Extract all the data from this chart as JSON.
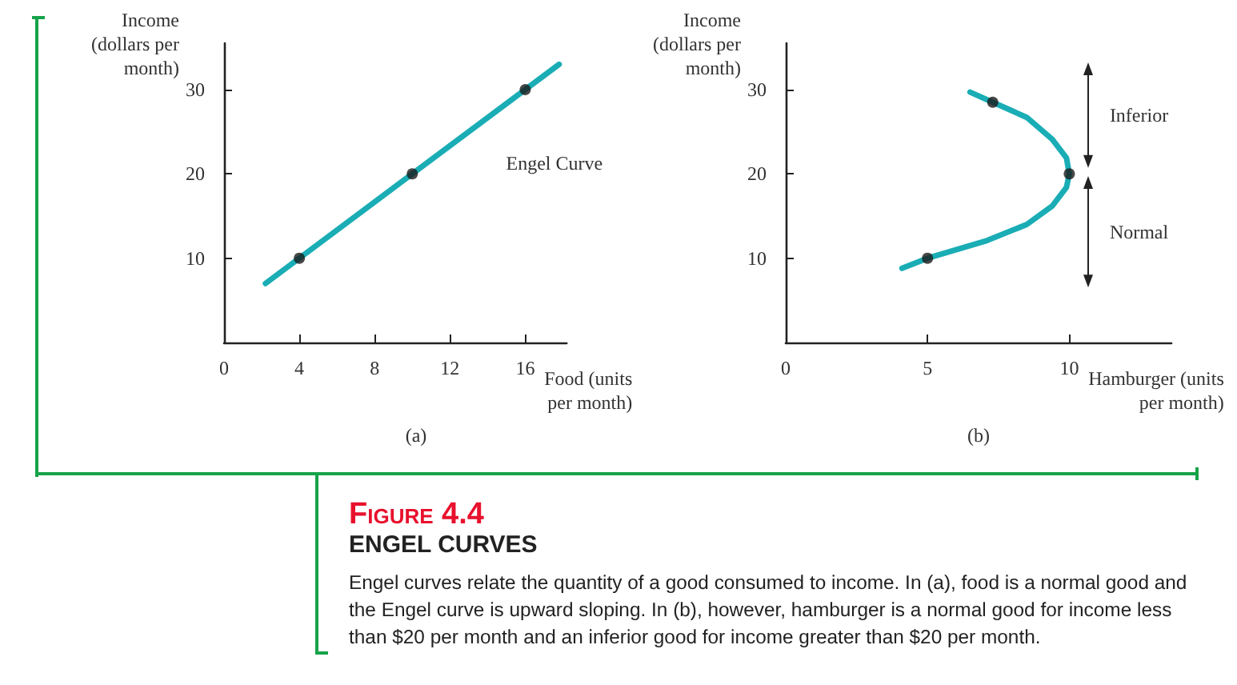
{
  "chart_data": [
    {
      "type": "line",
      "xlabel": "Food (units per month)",
      "ylabel": "Income (dollars per month)",
      "xlim": [
        0,
        18.2
      ],
      "ylim": [
        0,
        35.5
      ],
      "xticks": [
        0,
        4,
        8,
        12,
        16
      ],
      "yticks": [
        10,
        20,
        30
      ],
      "grid": false,
      "series": [
        {
          "type": "line",
          "x": [
            2.2,
            17.8
          ],
          "values": [
            7,
            33
          ],
          "color": "#1aadb5",
          "line_style": "solid"
        },
        {
          "type": "scatter",
          "x": [
            4,
            10,
            16
          ],
          "values": [
            10,
            20,
            30
          ],
          "color": "#1a1a1a",
          "marker": "circle"
        }
      ],
      "annotations": [
        "Engel Curve",
        "(a)"
      ]
    },
    {
      "type": "line",
      "xlabel": "Hamburger (units per month)",
      "ylabel": "Income (dollars per month)",
      "xlim": [
        0,
        13.6
      ],
      "ylim": [
        0,
        35.5
      ],
      "xticks": [
        0,
        5,
        10
      ],
      "yticks": [
        10,
        20,
        30
      ],
      "grid": false,
      "series": [
        {
          "type": "line",
          "x": [
            4.1,
            5,
            7.1,
            8.5,
            9.4,
            9.9,
            10,
            9.9,
            9.4,
            8.5,
            7.3,
            6.5
          ],
          "values": [
            8.8,
            10,
            12.1,
            14,
            16.2,
            18.4,
            20,
            21.9,
            24.1,
            26.7,
            28.5,
            29.7
          ],
          "color": "#1aadb5",
          "line_style": "solid"
        },
        {
          "type": "scatter",
          "x": [
            5,
            10,
            7.3
          ],
          "values": [
            10,
            20,
            28.5
          ],
          "color": "#1a1a1a",
          "marker": "circle"
        }
      ],
      "annotations": [
        "Inferior",
        "Normal",
        "(b)"
      ]
    },
    {
      "type": "other",
      "title": "Figure 4.4",
      "subtitle": "ENGEL CURVES",
      "annotations": [
        "Engel curves relate the quantity of a good consumed to income. In (a), food is a normal good and the Engel curve is upward sloping. In (b), however, hamburger is a normal good for income less than $20 per month and an inferior good for income greater than $20 per month."
      ]
    }
  ]
}
